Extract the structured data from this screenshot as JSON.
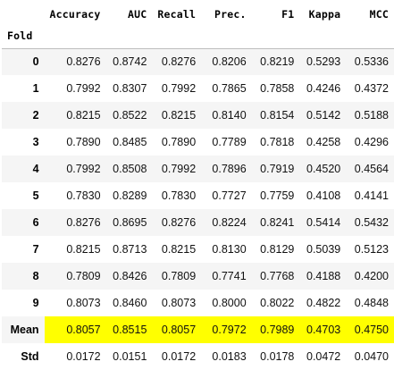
{
  "table": {
    "columns": [
      "Accuracy",
      "AUC",
      "Recall",
      "Prec.",
      "F1",
      "Kappa",
      "MCC"
    ],
    "index_name": "Fold",
    "rows": [
      {
        "label": "0",
        "values": [
          "0.8276",
          "0.8742",
          "0.8276",
          "0.8206",
          "0.8219",
          "0.5293",
          "0.5336"
        ]
      },
      {
        "label": "1",
        "values": [
          "0.7992",
          "0.8307",
          "0.7992",
          "0.7865",
          "0.7858",
          "0.4246",
          "0.4372"
        ]
      },
      {
        "label": "2",
        "values": [
          "0.8215",
          "0.8522",
          "0.8215",
          "0.8140",
          "0.8154",
          "0.5142",
          "0.5188"
        ]
      },
      {
        "label": "3",
        "values": [
          "0.7890",
          "0.8485",
          "0.7890",
          "0.7789",
          "0.7818",
          "0.4258",
          "0.4296"
        ]
      },
      {
        "label": "4",
        "values": [
          "0.7992",
          "0.8508",
          "0.7992",
          "0.7896",
          "0.7919",
          "0.4520",
          "0.4564"
        ]
      },
      {
        "label": "5",
        "values": [
          "0.7830",
          "0.8289",
          "0.7830",
          "0.7727",
          "0.7759",
          "0.4108",
          "0.4141"
        ]
      },
      {
        "label": "6",
        "values": [
          "0.8276",
          "0.8695",
          "0.8276",
          "0.8224",
          "0.8241",
          "0.5414",
          "0.5432"
        ]
      },
      {
        "label": "7",
        "values": [
          "0.8215",
          "0.8713",
          "0.8215",
          "0.8130",
          "0.8129",
          "0.5039",
          "0.5123"
        ]
      },
      {
        "label": "8",
        "values": [
          "0.7809",
          "0.8426",
          "0.7809",
          "0.7741",
          "0.7768",
          "0.4188",
          "0.4200"
        ]
      },
      {
        "label": "9",
        "values": [
          "0.8073",
          "0.8460",
          "0.8073",
          "0.8000",
          "0.8022",
          "0.4822",
          "0.4848"
        ]
      },
      {
        "label": "Mean",
        "values": [
          "0.8057",
          "0.8515",
          "0.8057",
          "0.7972",
          "0.7989",
          "0.4703",
          "0.4750"
        ]
      },
      {
        "label": "Std",
        "values": [
          "0.0172",
          "0.0151",
          "0.0172",
          "0.0183",
          "0.0178",
          "0.0472",
          "0.0470"
        ]
      }
    ],
    "highlight_color": "#ffff00"
  }
}
